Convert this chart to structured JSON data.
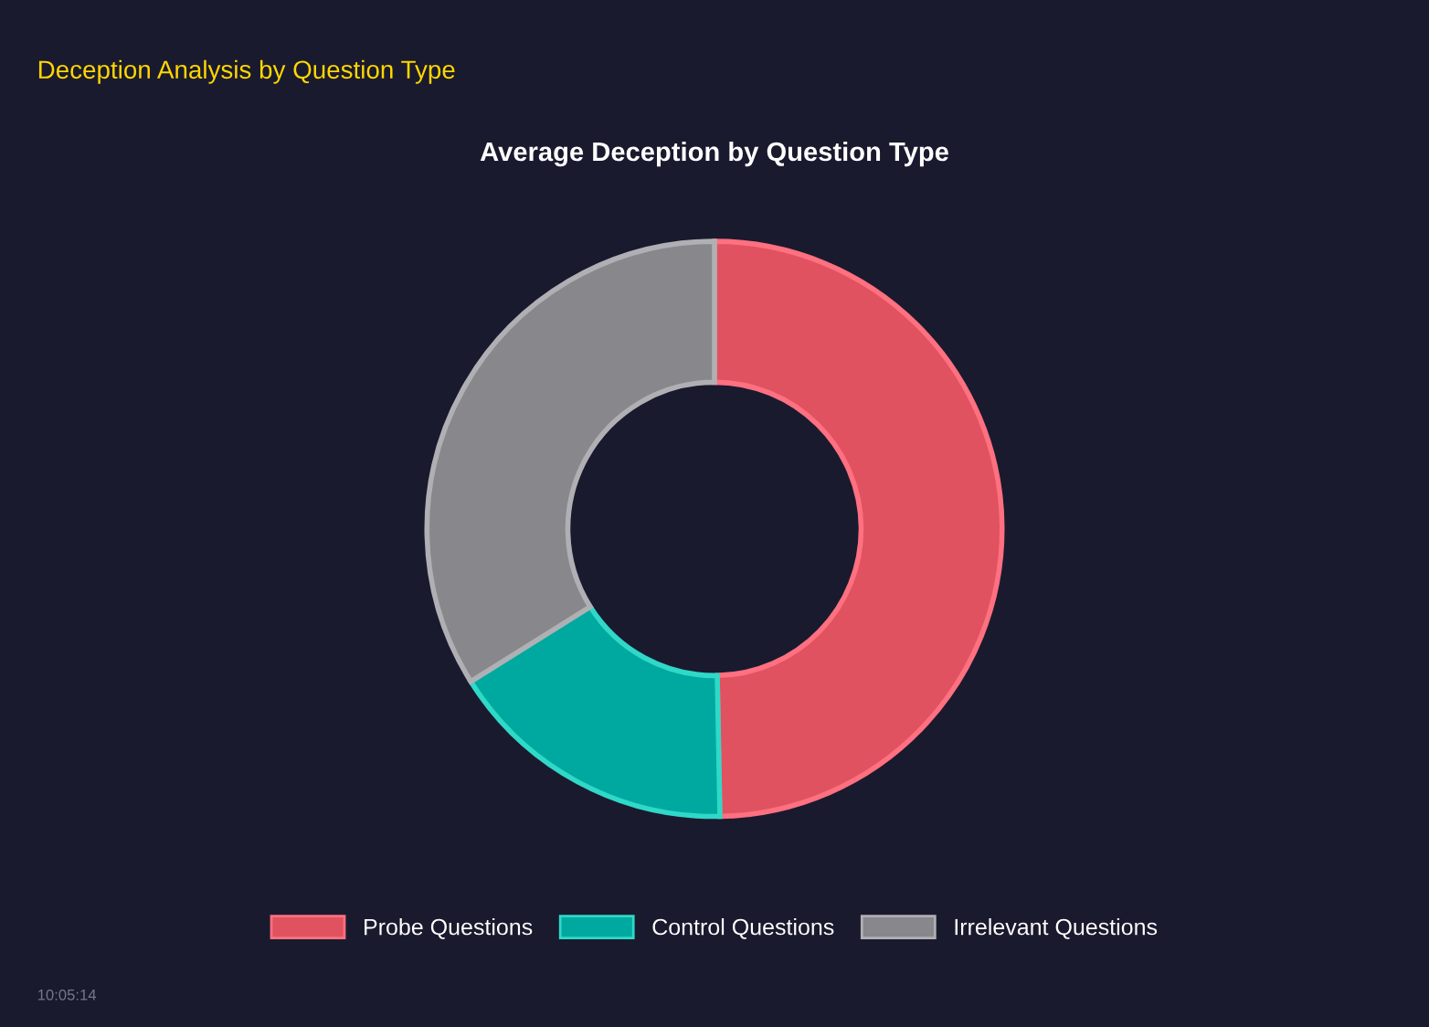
{
  "chart_data": {
    "type": "donut",
    "title": "Deception Analysis by Question Type",
    "subtitle": "Average Deception by Question Type",
    "categories": [
      "Probe Questions",
      "Control Questions",
      "Irrelevant Questions"
    ],
    "values": [
      49.7,
      16.4,
      33.9
    ],
    "colors": [
      "#e0525f",
      "#00a99f",
      "#88878c"
    ],
    "legend": "bottom",
    "annotations": [
      "10:05:14"
    ]
  }
}
